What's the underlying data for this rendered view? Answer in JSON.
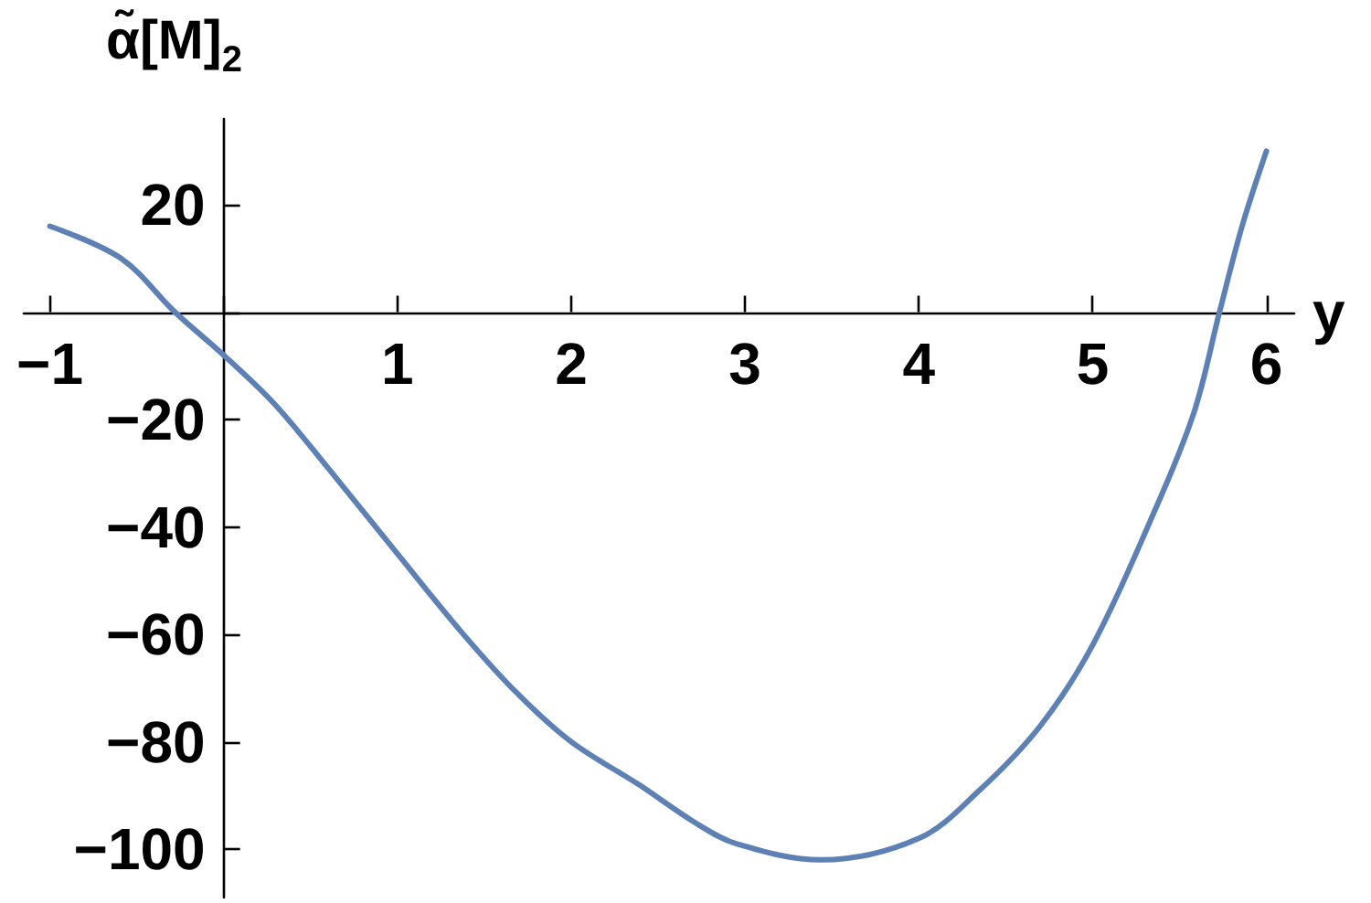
{
  "chart_data": {
    "type": "line",
    "xlabel": "y",
    "ylabel": "α̃[M]$_{2}$",
    "x": [
      -1,
      -0.59,
      -0.28,
      0,
      0.29,
      0.6,
      1,
      1.38,
      1.69,
      2,
      2.39,
      2.71,
      2.95,
      3.44,
      4,
      4.35,
      4.7,
      5,
      5.33,
      5.58,
      5.73,
      5.86,
      6
    ],
    "series": [
      {
        "color": "#5e81b5",
        "values": [
          16,
          10,
          0,
          -8,
          -17,
          -29,
          -45,
          -60,
          -71,
          -80,
          -88,
          -95,
          -99,
          -102,
          -98,
          -89,
          -77,
          -62,
          -39,
          -19,
          0,
          16,
          30
        ]
      }
    ],
    "xlim": [
      -1.15,
      6.16
    ],
    "ylim": [
      -109,
      36
    ],
    "xticks": [
      -1,
      {
        "value": 0,
        "label": null
      },
      1,
      2,
      3,
      4,
      5,
      6
    ],
    "yticks": [
      -100,
      -80,
      -60,
      -40,
      -20,
      {
        "value": 0,
        "label": null
      },
      20
    ],
    "marker": "none",
    "line_style": "solid"
  }
}
